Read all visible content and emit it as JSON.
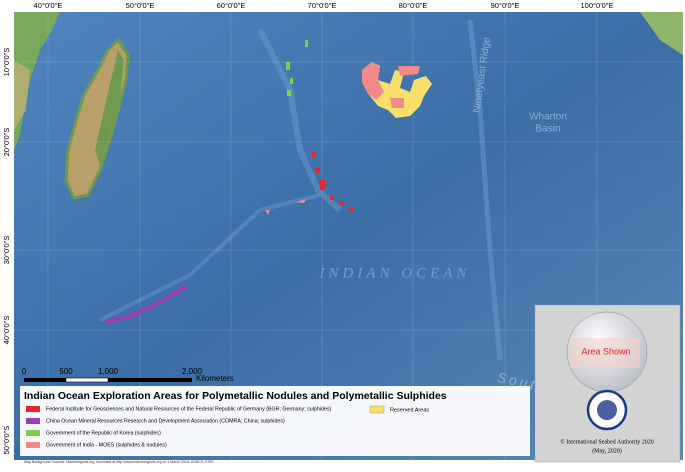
{
  "map": {
    "longitude_labels": [
      "40°0'0\"E",
      "50°0'0\"E",
      "60°0'0\"E",
      "70°0'0\"E",
      "80°0'0\"E",
      "90°0'0\"E",
      "100°0'0\"E"
    ],
    "latitude_labels": [
      "10°0'0\"S",
      "20°0'0\"S",
      "30°0'0\"S",
      "40°0'0\"S",
      "50°0'0\"S"
    ],
    "place_labels": {
      "ocean": "INDIAN OCEAN",
      "basin": [
        "Wharton",
        "Basin"
      ],
      "ridge": "Ninetyeast Ridge",
      "south": "South"
    }
  },
  "scale_bar": {
    "ticks": [
      "0",
      "500",
      "1,000",
      "2,000"
    ],
    "unit": "Kilometers"
  },
  "legend": {
    "title": "Indian Ocean Exploration Areas for Polymetallic Nodules and Polymetallic Sulphides",
    "items": [
      "Federal Institute for Geosciences and Natural Resources of the Federal Republic of Germany (BGR; Germany; sulphides)",
      "China Ocean Mineral Resources Research and Development Association (COMRA; China; sulphides)",
      "Government of the Republic of Korea (sulphides)",
      "Government of India - MOES (sulphides & nodules)"
    ],
    "reserved": "Reserved Areas",
    "source": "Map Background Sources: Marineregions.org, Accessed at http://www.marineregions.org on 1 March 2018; GEBCO; ESRI."
  },
  "inset": {
    "label": "Area Shown",
    "copyright": "© International Seabed Authority 2020",
    "date": "(May, 2020)"
  }
}
